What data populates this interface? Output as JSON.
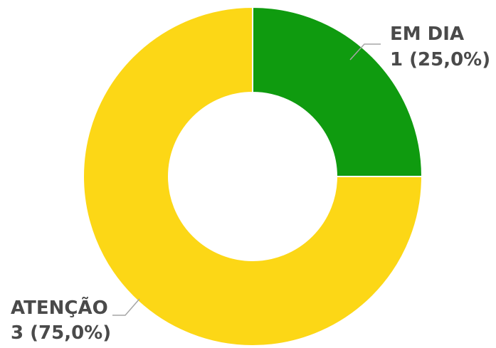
{
  "chart_data": {
    "type": "pie",
    "variant": "donut",
    "title": "",
    "slices": [
      {
        "name": "EM DIA",
        "value": 1,
        "value_label": "1 (25,0%)",
        "percent": 25.0,
        "color": "#0f9b0f"
      },
      {
        "name": "ATENÇÃO",
        "value": 3,
        "value_label": "3 (75,0%)",
        "percent": 75.0,
        "color": "#fcd716"
      }
    ],
    "legend": "none",
    "start_angle": "top, clockwise"
  },
  "colors": {
    "background": "#ffffff",
    "label_text": "#4a4a4a",
    "leader_line": "#a6a6a6"
  }
}
